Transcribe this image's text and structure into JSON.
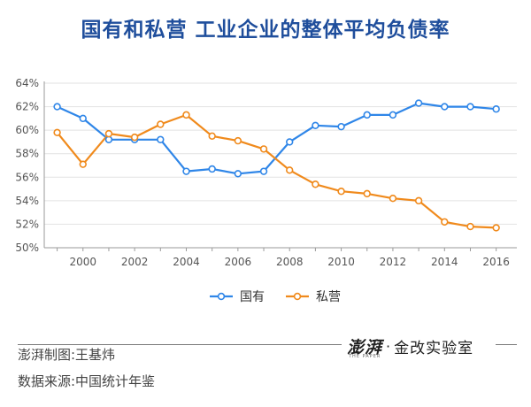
{
  "title": "国有和私营 工业企业的整体平均负债率",
  "chart_data": {
    "type": "line",
    "x": [
      1999,
      2000,
      2001,
      2002,
      2003,
      2004,
      2005,
      2006,
      2007,
      2008,
      2009,
      2010,
      2011,
      2012,
      2013,
      2014,
      2015,
      2016
    ],
    "series": [
      {
        "name": "国有",
        "color": "#2f86e8",
        "values": [
          62.0,
          61.0,
          59.2,
          59.2,
          59.2,
          56.5,
          56.7,
          56.3,
          56.5,
          59.0,
          60.4,
          60.3,
          61.3,
          61.3,
          62.3,
          62.0,
          62.0,
          61.8
        ]
      },
      {
        "name": "私营",
        "color": "#f08a1c",
        "values": [
          59.8,
          57.1,
          59.7,
          59.4,
          60.5,
          61.3,
          59.5,
          59.1,
          58.4,
          56.6,
          55.4,
          54.8,
          54.6,
          54.2,
          54.0,
          52.2,
          51.8,
          51.7
        ]
      }
    ],
    "x_ticks": [
      "2000",
      "2002",
      "2004",
      "2006",
      "2008",
      "2010",
      "2012",
      "2014",
      "2016"
    ],
    "y_ticks": [
      "50%",
      "52%",
      "54%",
      "56%",
      "58%",
      "60%",
      "62%",
      "64%"
    ],
    "ylim": [
      50,
      64
    ],
    "xlim": [
      1998.5,
      2016.8
    ],
    "grid": true,
    "legend": "bottom-center"
  },
  "footer": {
    "credit": "澎湃制图:王基炜",
    "source": "数据来源:中国统计年鉴"
  },
  "brand": {
    "logo": "澎湃",
    "logo_sub": "THE PAPER",
    "dot": "·",
    "text": "金改实验室"
  }
}
